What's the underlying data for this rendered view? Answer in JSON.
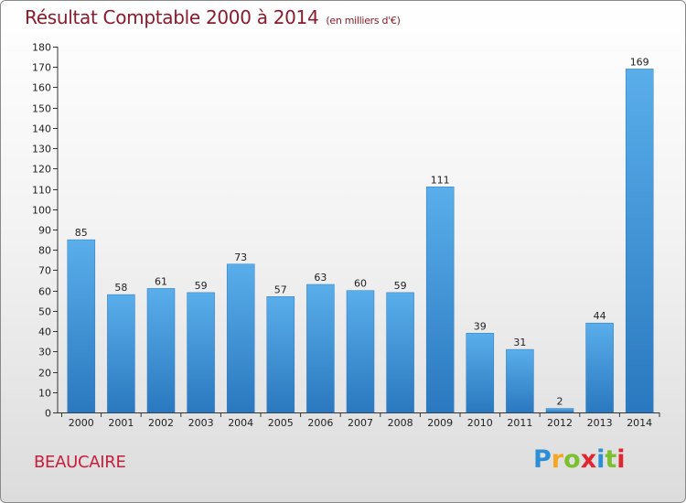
{
  "header": {
    "title": "Résultat Comptable 2000 à 2014",
    "subtitle": "(en milliers d'€)"
  },
  "footer": {
    "place": "BEAUCAIRE",
    "logo_letters": [
      {
        "ch": "P",
        "color": "#2c8fd6"
      },
      {
        "ch": "r",
        "color": "#f5a623"
      },
      {
        "ch": "o",
        "color": "#7cbf2f"
      },
      {
        "ch": "x",
        "color": "#e0262e"
      },
      {
        "ch": "i",
        "color": "#2c8fd6"
      },
      {
        "ch": "t",
        "color": "#7cbf2f"
      },
      {
        "ch": "i",
        "color": "#e0262e"
      }
    ]
  },
  "chart_data": {
    "type": "bar",
    "title": "Résultat Comptable 2000 à 2014",
    "categories": [
      "2000",
      "2001",
      "2002",
      "2003",
      "2004",
      "2005",
      "2006",
      "2007",
      "2008",
      "2009",
      "2010",
      "2011",
      "2012",
      "2013",
      "2014"
    ],
    "values": [
      85,
      58,
      61,
      59,
      73,
      57,
      63,
      60,
      59,
      111,
      39,
      31,
      2,
      44,
      169
    ],
    "ylim": [
      0,
      180
    ],
    "ytick_step": 10,
    "grid": false,
    "bar_color": "#4a9fe0",
    "bar_color_dark": "#2a78bf"
  }
}
